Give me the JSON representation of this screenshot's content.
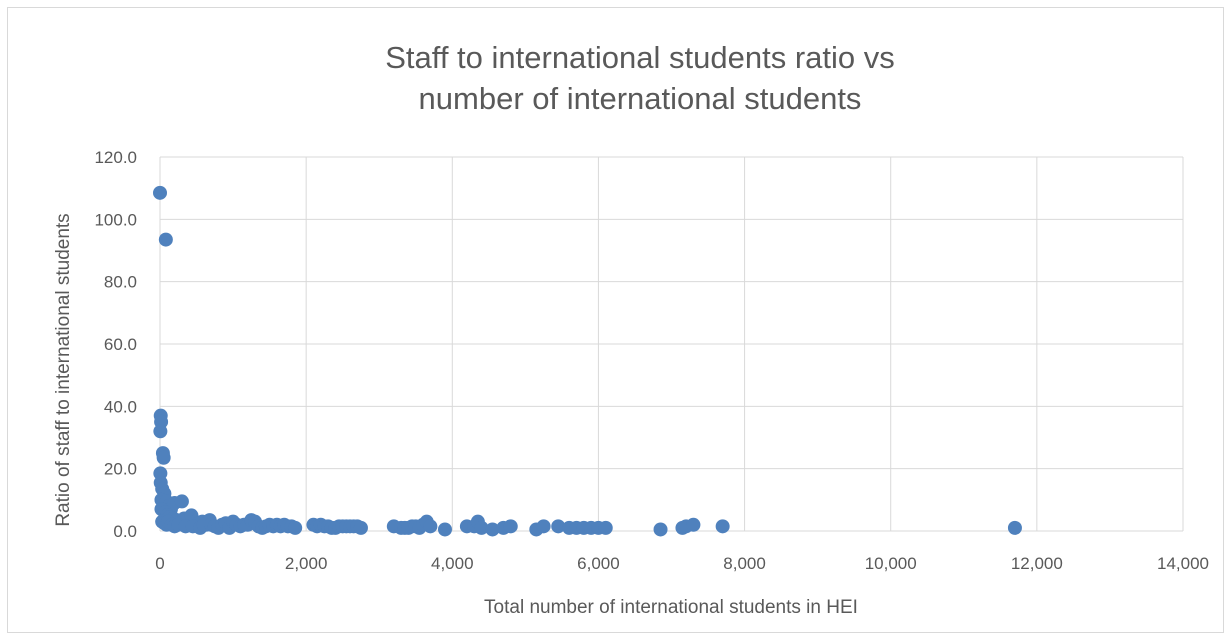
{
  "chart_data": {
    "type": "scatter",
    "title_lines": [
      "Staff to international students ratio vs",
      "number of international students"
    ],
    "xlabel": "Total number of international students in HEI",
    "ylabel": "Ratio of staff to international students",
    "xlim": [
      0,
      14000
    ],
    "ylim": [
      0,
      120
    ],
    "x_ticks": [
      "0",
      "2,000",
      "4,000",
      "6,000",
      "8,000",
      "10,000",
      "12,000",
      "14,000"
    ],
    "y_ticks": [
      "0.0",
      "20.0",
      "40.0",
      "60.0",
      "80.0",
      "100.0",
      "120.0"
    ],
    "grid": true,
    "legend": "none",
    "marker_color": "#4f81bd",
    "points": [
      [
        0,
        108.5
      ],
      [
        80,
        93.5
      ],
      [
        10,
        37
      ],
      [
        15,
        35
      ],
      [
        5,
        32
      ],
      [
        40,
        25
      ],
      [
        50,
        23.5
      ],
      [
        5,
        18.5
      ],
      [
        10,
        15.5
      ],
      [
        30,
        13.5
      ],
      [
        60,
        12
      ],
      [
        20,
        10
      ],
      [
        90,
        9.5
      ],
      [
        120,
        8
      ],
      [
        150,
        7
      ],
      [
        200,
        9
      ],
      [
        300,
        9.5
      ],
      [
        20,
        7
      ],
      [
        70,
        6
      ],
      [
        100,
        5
      ],
      [
        130,
        4.5
      ],
      [
        180,
        4
      ],
      [
        230,
        3.5
      ],
      [
        280,
        3
      ],
      [
        330,
        4
      ],
      [
        380,
        3.5
      ],
      [
        430,
        5
      ],
      [
        480,
        3
      ],
      [
        530,
        2.5
      ],
      [
        580,
        3
      ],
      [
        630,
        2
      ],
      [
        680,
        3.5
      ],
      [
        30,
        3
      ],
      [
        60,
        2.5
      ],
      [
        90,
        2
      ],
      [
        110,
        3
      ],
      [
        160,
        2
      ],
      [
        200,
        1.5
      ],
      [
        250,
        2
      ],
      [
        350,
        1.5
      ],
      [
        450,
        1.5
      ],
      [
        550,
        1
      ],
      [
        600,
        2
      ],
      [
        700,
        2
      ],
      [
        750,
        1.5
      ],
      [
        800,
        1
      ],
      [
        850,
        2
      ],
      [
        900,
        2.5
      ],
      [
        950,
        1
      ],
      [
        1000,
        3
      ],
      [
        1050,
        2
      ],
      [
        1100,
        1.5
      ],
      [
        1150,
        2
      ],
      [
        1200,
        2
      ],
      [
        1250,
        3.5
      ],
      [
        1300,
        3
      ],
      [
        1350,
        1.5
      ],
      [
        1400,
        1
      ],
      [
        1450,
        1.5
      ],
      [
        1500,
        2
      ],
      [
        1550,
        1.5
      ],
      [
        1600,
        2
      ],
      [
        1650,
        1.5
      ],
      [
        1700,
        2
      ],
      [
        1750,
        1.5
      ],
      [
        1800,
        1.5
      ],
      [
        1850,
        1
      ],
      [
        2100,
        2
      ],
      [
        2150,
        1.5
      ],
      [
        2200,
        2
      ],
      [
        2250,
        1.5
      ],
      [
        2300,
        1.5
      ],
      [
        2350,
        1
      ],
      [
        2400,
        1
      ],
      [
        2450,
        1.5
      ],
      [
        2500,
        1.5
      ],
      [
        2550,
        1.5
      ],
      [
        2600,
        1.5
      ],
      [
        2650,
        1.5
      ],
      [
        2700,
        1.5
      ],
      [
        2750,
        1
      ],
      [
        3200,
        1.5
      ],
      [
        3300,
        1
      ],
      [
        3350,
        1
      ],
      [
        3400,
        1
      ],
      [
        3450,
        1.5
      ],
      [
        3500,
        1.5
      ],
      [
        3550,
        1
      ],
      [
        3600,
        2
      ],
      [
        3650,
        3
      ],
      [
        3700,
        1.5
      ],
      [
        3900,
        0.5
      ],
      [
        4200,
        1.5
      ],
      [
        4300,
        1.5
      ],
      [
        4350,
        3
      ],
      [
        4400,
        1
      ],
      [
        4550,
        0.5
      ],
      [
        4700,
        1
      ],
      [
        4800,
        1.5
      ],
      [
        5150,
        0.5
      ],
      [
        5250,
        1.5
      ],
      [
        5450,
        1.5
      ],
      [
        5600,
        1
      ],
      [
        5700,
        1
      ],
      [
        5800,
        1
      ],
      [
        5900,
        1
      ],
      [
        6000,
        1
      ],
      [
        6100,
        1
      ],
      [
        6850,
        0.5
      ],
      [
        7150,
        1
      ],
      [
        7200,
        1.5
      ],
      [
        7300,
        2
      ],
      [
        7700,
        1.5
      ],
      [
        11700,
        1
      ]
    ]
  }
}
